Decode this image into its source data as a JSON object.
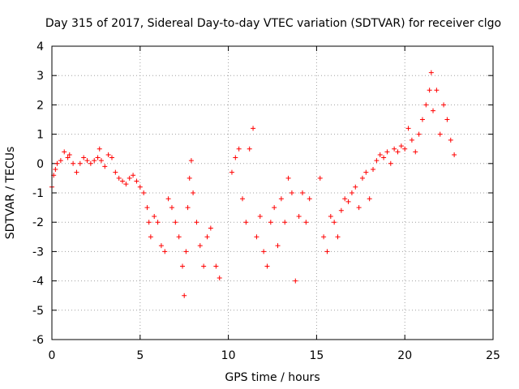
{
  "chart_data": {
    "type": "scatter",
    "title": "Day 315 of 2017, Sidereal Day-to-day VTEC variation (SDTVAR) for receiver clgo",
    "xlabel": "GPS time / hours",
    "ylabel": "SDTVAR / TECUs",
    "xlim": [
      0,
      25
    ],
    "ylim": [
      -6,
      4
    ],
    "xticks": [
      0,
      5,
      10,
      15,
      20,
      25
    ],
    "yticks": [
      -6,
      -5,
      -4,
      -3,
      -2,
      -1,
      0,
      1,
      2,
      3,
      4
    ],
    "xtick_labels": [
      "0",
      "5",
      "10",
      "15",
      "20",
      "25"
    ],
    "ytick_labels": [
      "-6",
      "-5",
      "-4",
      "-3",
      "-2",
      "-1",
      "0",
      "1",
      "2",
      "3",
      "4"
    ],
    "grid": true,
    "marker": "+",
    "series": [
      {
        "name": "SDTVAR",
        "color": "#ff0000",
        "x": [
          0.0,
          0.1,
          0.2,
          0.3,
          0.5,
          0.7,
          0.9,
          1.0,
          1.2,
          1.4,
          1.6,
          1.8,
          2.0,
          2.2,
          2.4,
          2.6,
          2.7,
          2.8,
          3.0,
          3.2,
          3.4,
          3.6,
          3.8,
          4.0,
          4.2,
          4.4,
          4.6,
          4.8,
          5.0,
          5.2,
          5.4,
          5.5,
          5.6,
          5.8,
          6.0,
          6.2,
          6.4,
          6.6,
          6.8,
          7.0,
          7.2,
          7.4,
          7.5,
          7.6,
          7.7,
          7.8,
          7.9,
          8.0,
          8.2,
          8.4,
          8.6,
          8.8,
          9.0,
          9.3,
          9.5,
          10.2,
          10.4,
          10.6,
          10.8,
          11.0,
          11.2,
          11.4,
          11.6,
          11.8,
          12.0,
          12.2,
          12.4,
          12.6,
          12.8,
          13.0,
          13.2,
          13.4,
          13.6,
          13.8,
          14.0,
          14.2,
          14.4,
          14.6,
          15.2,
          15.4,
          15.6,
          15.8,
          16.0,
          16.2,
          16.4,
          16.6,
          16.8,
          17.0,
          17.2,
          17.4,
          17.6,
          17.8,
          18.0,
          18.2,
          18.4,
          18.6,
          18.8,
          19.0,
          19.2,
          19.4,
          19.6,
          19.8,
          20.0,
          20.2,
          20.4,
          20.6,
          20.8,
          21.0,
          21.2,
          21.4,
          21.5,
          21.6,
          21.8,
          22.0,
          22.2,
          22.4,
          22.6,
          22.8
        ],
        "y": [
          -0.8,
          -0.4,
          -0.2,
          0.0,
          0.1,
          0.4,
          0.2,
          0.3,
          0.0,
          -0.3,
          0.0,
          0.2,
          0.1,
          0.0,
          0.1,
          0.2,
          0.5,
          0.1,
          -0.1,
          0.3,
          0.2,
          -0.3,
          -0.5,
          -0.6,
          -0.7,
          -0.5,
          -0.4,
          -0.6,
          -0.8,
          -1.0,
          -1.5,
          -2.0,
          -2.5,
          -1.8,
          -2.0,
          -2.8,
          -3.0,
          -1.2,
          -1.5,
          -2.0,
          -2.5,
          -3.5,
          -4.5,
          -3.0,
          -1.5,
          -0.5,
          0.1,
          -1.0,
          -2.0,
          -2.8,
          -3.5,
          -2.5,
          -2.2,
          -3.5,
          -3.9,
          -0.3,
          0.2,
          0.5,
          -1.2,
          -2.0,
          0.5,
          1.2,
          -2.5,
          -1.8,
          -3.0,
          -3.5,
          -2.0,
          -1.5,
          -2.8,
          -1.2,
          -2.0,
          -0.5,
          -1.0,
          -4.0,
          -1.8,
          -1.0,
          -2.0,
          -1.2,
          -0.5,
          -2.5,
          -3.0,
          -1.8,
          -2.0,
          -2.5,
          -1.6,
          -1.2,
          -1.3,
          -1.0,
          -0.8,
          -1.5,
          -0.5,
          -0.3,
          -1.2,
          -0.2,
          0.1,
          0.3,
          0.2,
          0.4,
          0.0,
          0.5,
          0.4,
          0.6,
          0.5,
          1.2,
          0.8,
          0.4,
          1.0,
          1.5,
          2.0,
          2.5,
          3.1,
          1.8,
          2.5,
          1.0,
          2.0,
          1.5,
          0.8,
          0.3
        ]
      }
    ]
  }
}
